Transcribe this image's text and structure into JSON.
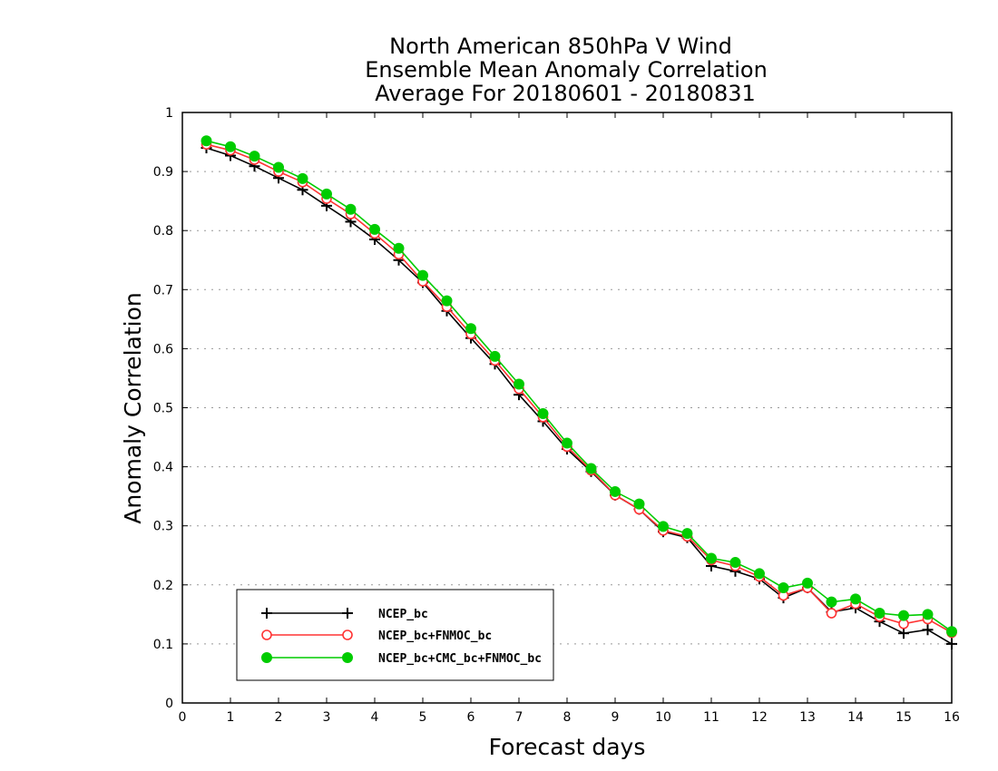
{
  "chart_data": {
    "type": "line",
    "title_lines": [
      "North American 850hPa V Wind",
      "Ensemble Mean Anomaly Correlation",
      "Average For 20180601 - 20180831"
    ],
    "xlabel": "Forecast days",
    "ylabel": "Anomaly Correlation",
    "xlim": [
      0,
      16
    ],
    "ylim": [
      0,
      1
    ],
    "x_ticks": [
      "0",
      "1",
      "2",
      "3",
      "4",
      "5",
      "6",
      "7",
      "8",
      "9",
      "10",
      "11",
      "12",
      "13",
      "14",
      "15",
      "16"
    ],
    "y_ticks": [
      "0",
      "0.1",
      "0.2",
      "0.3",
      "0.4",
      "0.5",
      "0.6",
      "0.7",
      "0.8",
      "0.9",
      "1"
    ],
    "grid": "horizontal dotted",
    "legend_position": "bottom-left",
    "x": [
      0.5,
      1.0,
      1.5,
      2.0,
      2.5,
      3.0,
      3.5,
      4.0,
      4.5,
      5.0,
      5.5,
      6.0,
      6.5,
      7.0,
      7.5,
      8.0,
      8.5,
      9.0,
      9.5,
      10.0,
      10.5,
      11.0,
      11.5,
      12.0,
      12.5,
      13.0,
      13.5,
      14.0,
      14.5,
      15.0,
      15.5,
      16.0
    ],
    "series": [
      {
        "name": "NCEP_bc",
        "color": "#000000",
        "marker": "plus",
        "values": [
          0.94,
          0.927,
          0.909,
          0.889,
          0.869,
          0.842,
          0.815,
          0.785,
          0.75,
          0.712,
          0.664,
          0.618,
          0.574,
          0.522,
          0.477,
          0.43,
          0.392,
          0.352,
          0.328,
          0.29,
          0.28,
          0.232,
          0.223,
          0.21,
          0.178,
          0.195,
          0.154,
          0.161,
          0.138,
          0.118,
          0.124,
          0.1
        ]
      },
      {
        "name": "NCEP_bc+FNMOC_bc",
        "color": "#ff3333",
        "marker": "open-circle",
        "values": [
          0.946,
          0.936,
          0.92,
          0.9,
          0.882,
          0.854,
          0.828,
          0.795,
          0.76,
          0.714,
          0.671,
          0.625,
          0.58,
          0.532,
          0.484,
          0.434,
          0.394,
          0.352,
          0.328,
          0.292,
          0.282,
          0.242,
          0.232,
          0.214,
          0.182,
          0.195,
          0.152,
          0.168,
          0.146,
          0.134,
          0.142,
          0.119
        ]
      },
      {
        "name": "NCEP_bc+CMC_bc+FNMOC_bc",
        "color": "#00cc00",
        "marker": "filled-circle",
        "values": [
          0.952,
          0.942,
          0.926,
          0.907,
          0.888,
          0.862,
          0.836,
          0.802,
          0.77,
          0.724,
          0.681,
          0.634,
          0.587,
          0.54,
          0.49,
          0.44,
          0.397,
          0.358,
          0.337,
          0.299,
          0.287,
          0.245,
          0.238,
          0.219,
          0.195,
          0.203,
          0.171,
          0.176,
          0.152,
          0.148,
          0.15,
          0.121
        ]
      }
    ]
  }
}
